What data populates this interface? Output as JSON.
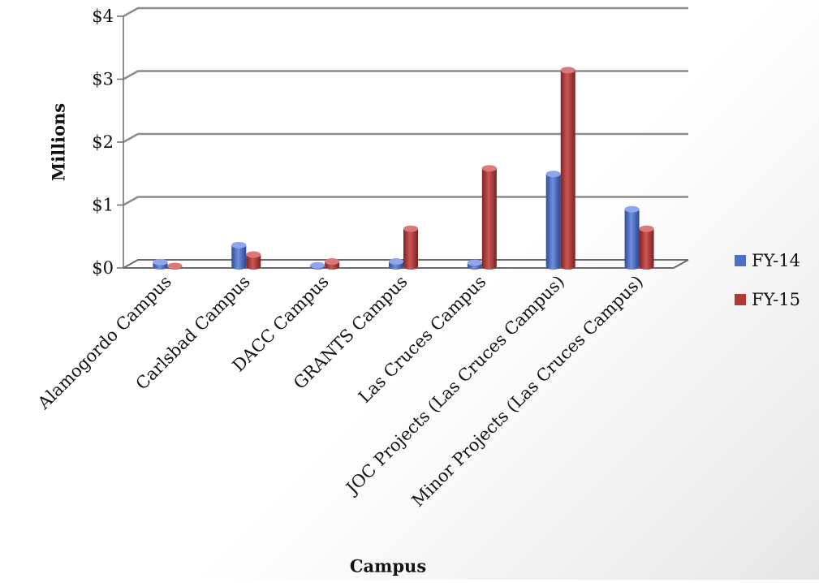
{
  "chart_data": {
    "type": "bar",
    "title": "",
    "xlabel": "Campus",
    "ylabel": "Millions",
    "ylim": [
      0,
      4
    ],
    "yticks": [
      0,
      1,
      2,
      3,
      4
    ],
    "ytick_labels": [
      "$0",
      "$1",
      "$2",
      "$3",
      "$4"
    ],
    "grid": true,
    "legend_position": "right",
    "categories": [
      "Alamogordo Campus",
      "Carlsbad Campus",
      "DACC Campus",
      "GRANTS Campus",
      "Las Cruces Campus",
      "JOC Projects (Las Cruces Campus)",
      "Minor Projects (Las Cruces Campus)"
    ],
    "series": [
      {
        "name": "FY-14",
        "color": "#4F6FC4",
        "values": [
          0.08,
          0.35,
          0.03,
          0.09,
          0.07,
          1.48,
          0.92
        ]
      },
      {
        "name": "FY-15",
        "color": "#B03A38",
        "values": [
          0.02,
          0.2,
          0.09,
          0.61,
          1.57,
          3.13,
          0.61
        ]
      }
    ]
  }
}
